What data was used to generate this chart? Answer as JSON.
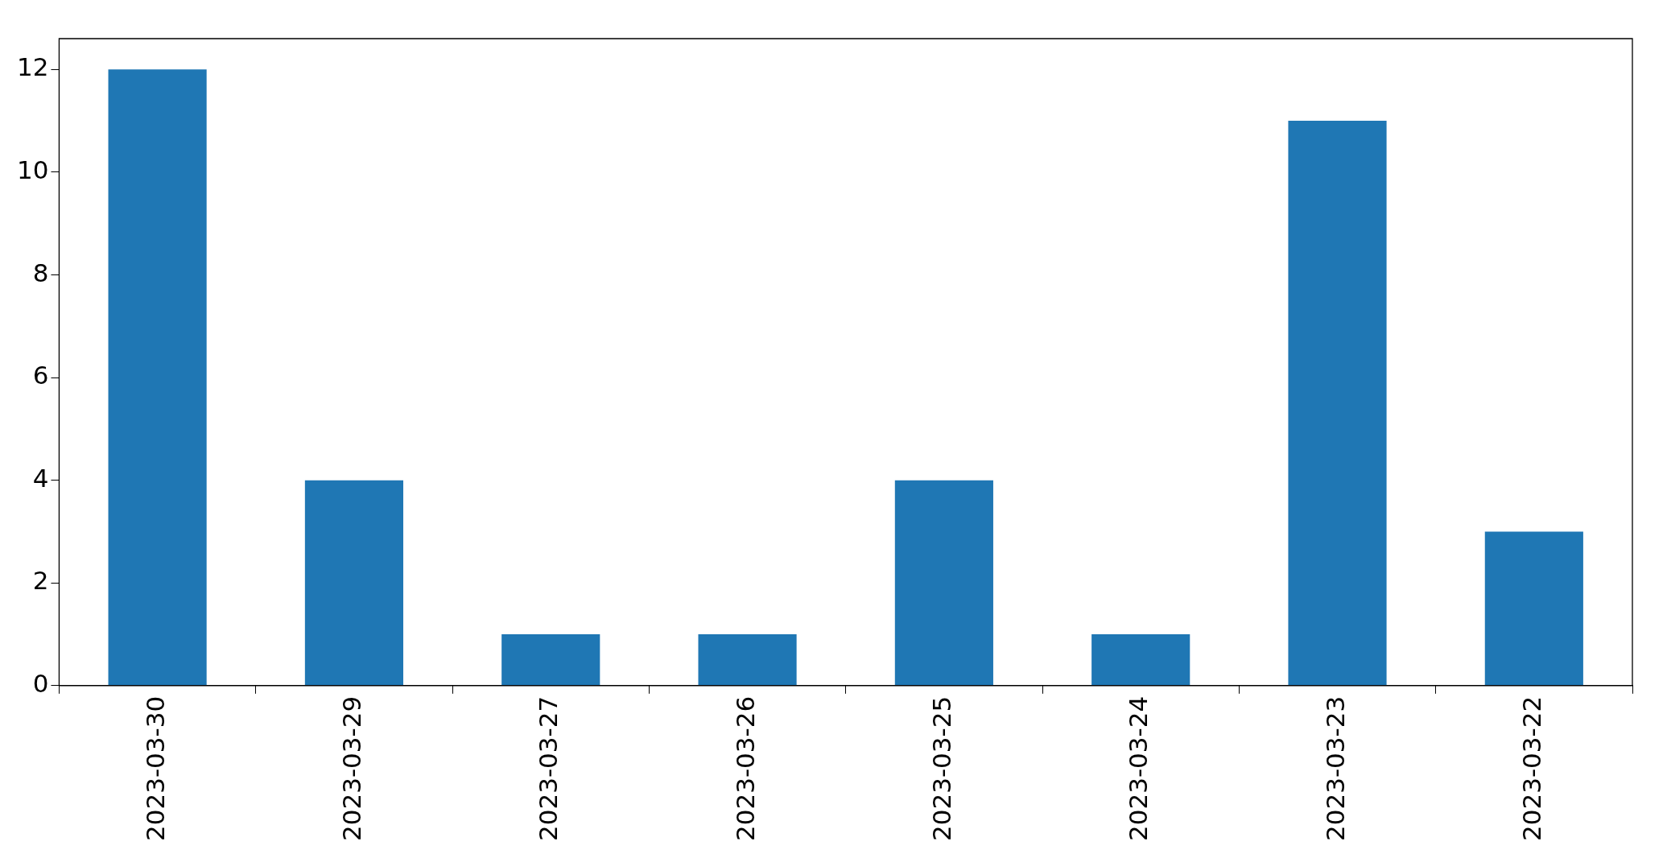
{
  "chart_data": {
    "type": "bar",
    "categories": [
      "2023-03-30",
      "2023-03-29",
      "2023-03-27",
      "2023-03-26",
      "2023-03-25",
      "2023-03-24",
      "2023-03-23",
      "2023-03-22"
    ],
    "values": [
      12,
      4,
      1,
      1,
      4,
      1,
      11,
      3
    ],
    "color": "#1f77b4",
    "ylim": [
      0,
      12.6
    ],
    "yticks": [
      0,
      2,
      4,
      6,
      8,
      10,
      12
    ],
    "grid": false,
    "legend": false
  }
}
